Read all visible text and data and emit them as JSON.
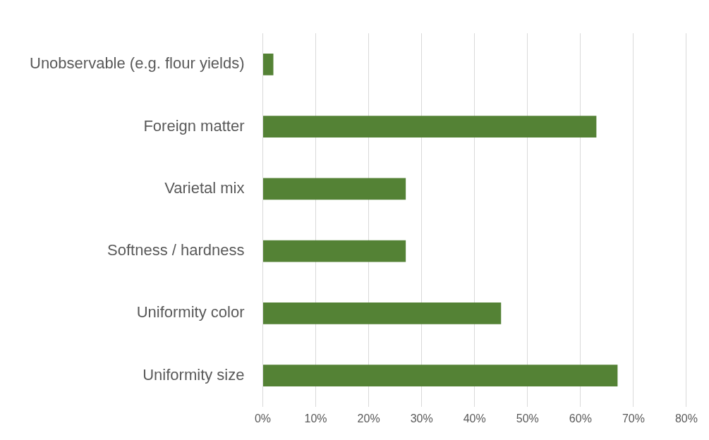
{
  "chart_data": {
    "type": "bar",
    "orientation": "horizontal",
    "categories": [
      "Unobservable (e.g. flour yields)",
      "Foreign matter",
      "Varietal mix",
      "Softness / hardness",
      "Uniformity color",
      "Uniformity size"
    ],
    "values": [
      2,
      63,
      27,
      27,
      45,
      67
    ],
    "color": "#548235",
    "xlim": [
      0,
      80
    ],
    "xticks": [
      {
        "value": 0,
        "label": "0%"
      },
      {
        "value": 10,
        "label": "10%"
      },
      {
        "value": 20,
        "label": "20%"
      },
      {
        "value": 30,
        "label": "30%"
      },
      {
        "value": 40,
        "label": "40%"
      },
      {
        "value": 50,
        "label": "50%"
      },
      {
        "value": 60,
        "label": "60%"
      },
      {
        "value": 70,
        "label": "70%"
      },
      {
        "value": 80,
        "label": "80%"
      }
    ],
    "grid": "x",
    "legend": false
  }
}
